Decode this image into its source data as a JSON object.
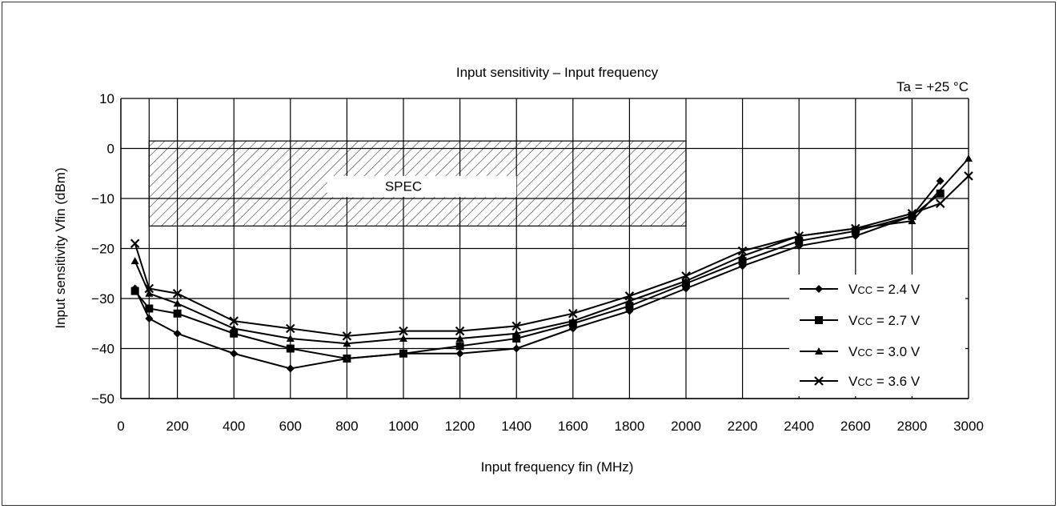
{
  "chart_data": {
    "type": "line",
    "title": "Input sensitivity – Input frequency",
    "condition": "Ta = +25 °C",
    "xlabel": "Input frequency fin (MHz)",
    "ylabel": "Input sensitivity Vfin (dBm)",
    "xlim": [
      0,
      3000
    ],
    "ylim": [
      -50,
      10
    ],
    "x_ticks": [
      "0",
      "200",
      "400",
      "600",
      "800",
      "1000",
      "1200",
      "1400",
      "1600",
      "1800",
      "2000",
      "2200",
      "2400",
      "2600",
      "2800",
      "3000"
    ],
    "y_ticks": [
      "10",
      "0",
      "−10",
      "−20",
      "−30",
      "−40",
      "−50"
    ],
    "x_tick_values": [
      0,
      200,
      400,
      600,
      800,
      1000,
      1200,
      1400,
      1600,
      1800,
      2000,
      2200,
      2400,
      2600,
      2800,
      3000
    ],
    "y_tick_values": [
      10,
      0,
      -10,
      -20,
      -30,
      -40,
      -50
    ],
    "x_grid_values": [
      100,
      200,
      400,
      600,
      800,
      1000,
      1200,
      1400,
      1600,
      1800,
      2000,
      2200,
      2400,
      2600,
      2800,
      3000
    ],
    "grid": true,
    "spec_region": {
      "label": "SPEC",
      "x": [
        100,
        2000
      ],
      "y": [
        -15.5,
        1.5
      ]
    },
    "legend_position": "bottom-right",
    "series": [
      {
        "name": "Vcc = 2.4 V",
        "name_main": "V",
        "name_sub": "CC",
        "name_rest": " = 2.4 V",
        "marker": "diamond",
        "x": [
          50,
          100,
          200,
          400,
          600,
          800,
          1000,
          1200,
          1400,
          1600,
          1800,
          2000,
          2200,
          2400,
          2600,
          2800,
          2900
        ],
        "y": [
          -28,
          -34,
          -37,
          -41,
          -44,
          -42,
          -41,
          -41,
          -40,
          -36,
          -32.5,
          -28,
          -23.5,
          -19.5,
          -17.5,
          -13.5,
          -6.5
        ]
      },
      {
        "name": "Vcc = 2.7 V",
        "name_main": "V",
        "name_sub": "CC",
        "name_rest": " = 2.7 V",
        "marker": "square",
        "x": [
          50,
          100,
          200,
          400,
          600,
          800,
          1000,
          1200,
          1400,
          1600,
          1800,
          2000,
          2200,
          2400,
          2600,
          2800,
          2900
        ],
        "y": [
          -28.5,
          -32,
          -33,
          -37,
          -40,
          -42,
          -41,
          -39.5,
          -38,
          -35,
          -31.5,
          -27,
          -22.5,
          -18.5,
          -16.5,
          -13.5,
          -9
        ]
      },
      {
        "name": "Vcc = 3.0 V",
        "name_main": "V",
        "name_sub": "CC",
        "name_rest": " = 3.0 V",
        "marker": "triangle",
        "x": [
          50,
          100,
          200,
          400,
          600,
          800,
          1000,
          1200,
          1400,
          1600,
          1800,
          2000,
          2200,
          2400,
          2600,
          2800,
          3000
        ],
        "y": [
          -22.5,
          -29,
          -31,
          -36,
          -38,
          -39,
          -38,
          -38,
          -37,
          -34.5,
          -30.5,
          -26.5,
          -21.5,
          -17.5,
          -16,
          -14.5,
          -2
        ]
      },
      {
        "name": "Vcc = 3.6 V",
        "name_main": "V",
        "name_sub": "CC",
        "name_rest": " = 3.6 V",
        "marker": "cross",
        "x": [
          50,
          100,
          200,
          400,
          600,
          800,
          1000,
          1200,
          1400,
          1600,
          1800,
          2000,
          2200,
          2400,
          2600,
          2800,
          2900,
          3000
        ],
        "y": [
          -19,
          -28,
          -29,
          -34.5,
          -36,
          -37.5,
          -36.5,
          -36.5,
          -35.5,
          -33,
          -29.5,
          -25.5,
          -20.5,
          -17.5,
          -16,
          -13,
          -11,
          -5.5
        ]
      }
    ]
  }
}
